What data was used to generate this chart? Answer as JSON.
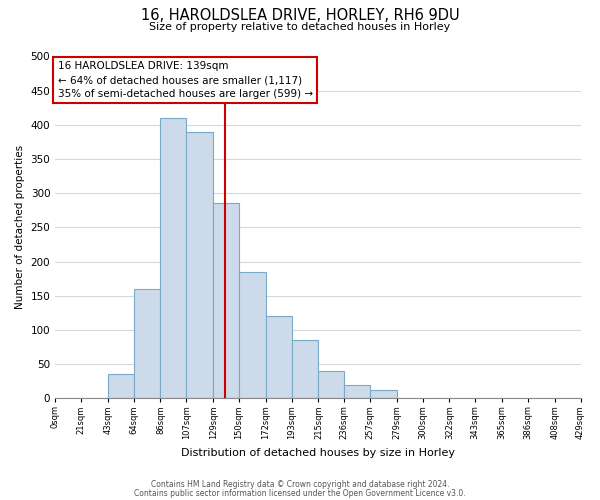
{
  "title": "16, HAROLDSLEA DRIVE, HORLEY, RH6 9DU",
  "subtitle": "Size of property relative to detached houses in Horley",
  "xlabel": "Distribution of detached houses by size in Horley",
  "ylabel": "Number of detached properties",
  "bin_edges": [
    0,
    21,
    43,
    64,
    86,
    107,
    129,
    150,
    172,
    193,
    215,
    236,
    257,
    279,
    300,
    322,
    343,
    365,
    386,
    408,
    429
  ],
  "bin_counts": [
    0,
    0,
    35,
    160,
    410,
    390,
    285,
    185,
    120,
    85,
    40,
    20,
    12,
    0,
    0,
    0,
    0,
    0,
    0,
    0
  ],
  "bar_color": "#ccdaea",
  "bar_edge_color": "#7aaac8",
  "property_size": 139,
  "vline_color": "#cc0000",
  "annotation_title": "16 HAROLDSLEA DRIVE: 139sqm",
  "annotation_line1": "← 64% of detached houses are smaller (1,117)",
  "annotation_line2": "35% of semi-detached houses are larger (599) →",
  "annotation_box_color": "#ffffff",
  "annotation_box_edge": "#cc0000",
  "tick_labels": [
    "0sqm",
    "21sqm",
    "43sqm",
    "64sqm",
    "86sqm",
    "107sqm",
    "129sqm",
    "150sqm",
    "172sqm",
    "193sqm",
    "215sqm",
    "236sqm",
    "257sqm",
    "279sqm",
    "300sqm",
    "322sqm",
    "343sqm",
    "365sqm",
    "386sqm",
    "408sqm",
    "429sqm"
  ],
  "ylim": [
    0,
    500
  ],
  "yticks": [
    0,
    50,
    100,
    150,
    200,
    250,
    300,
    350,
    400,
    450,
    500
  ],
  "footer1": "Contains HM Land Registry data © Crown copyright and database right 2024.",
  "footer2": "Contains public sector information licensed under the Open Government Licence v3.0.",
  "background_color": "#ffffff",
  "grid_color": "#d0d8e0",
  "fig_width": 6.0,
  "fig_height": 5.0,
  "dpi": 100
}
